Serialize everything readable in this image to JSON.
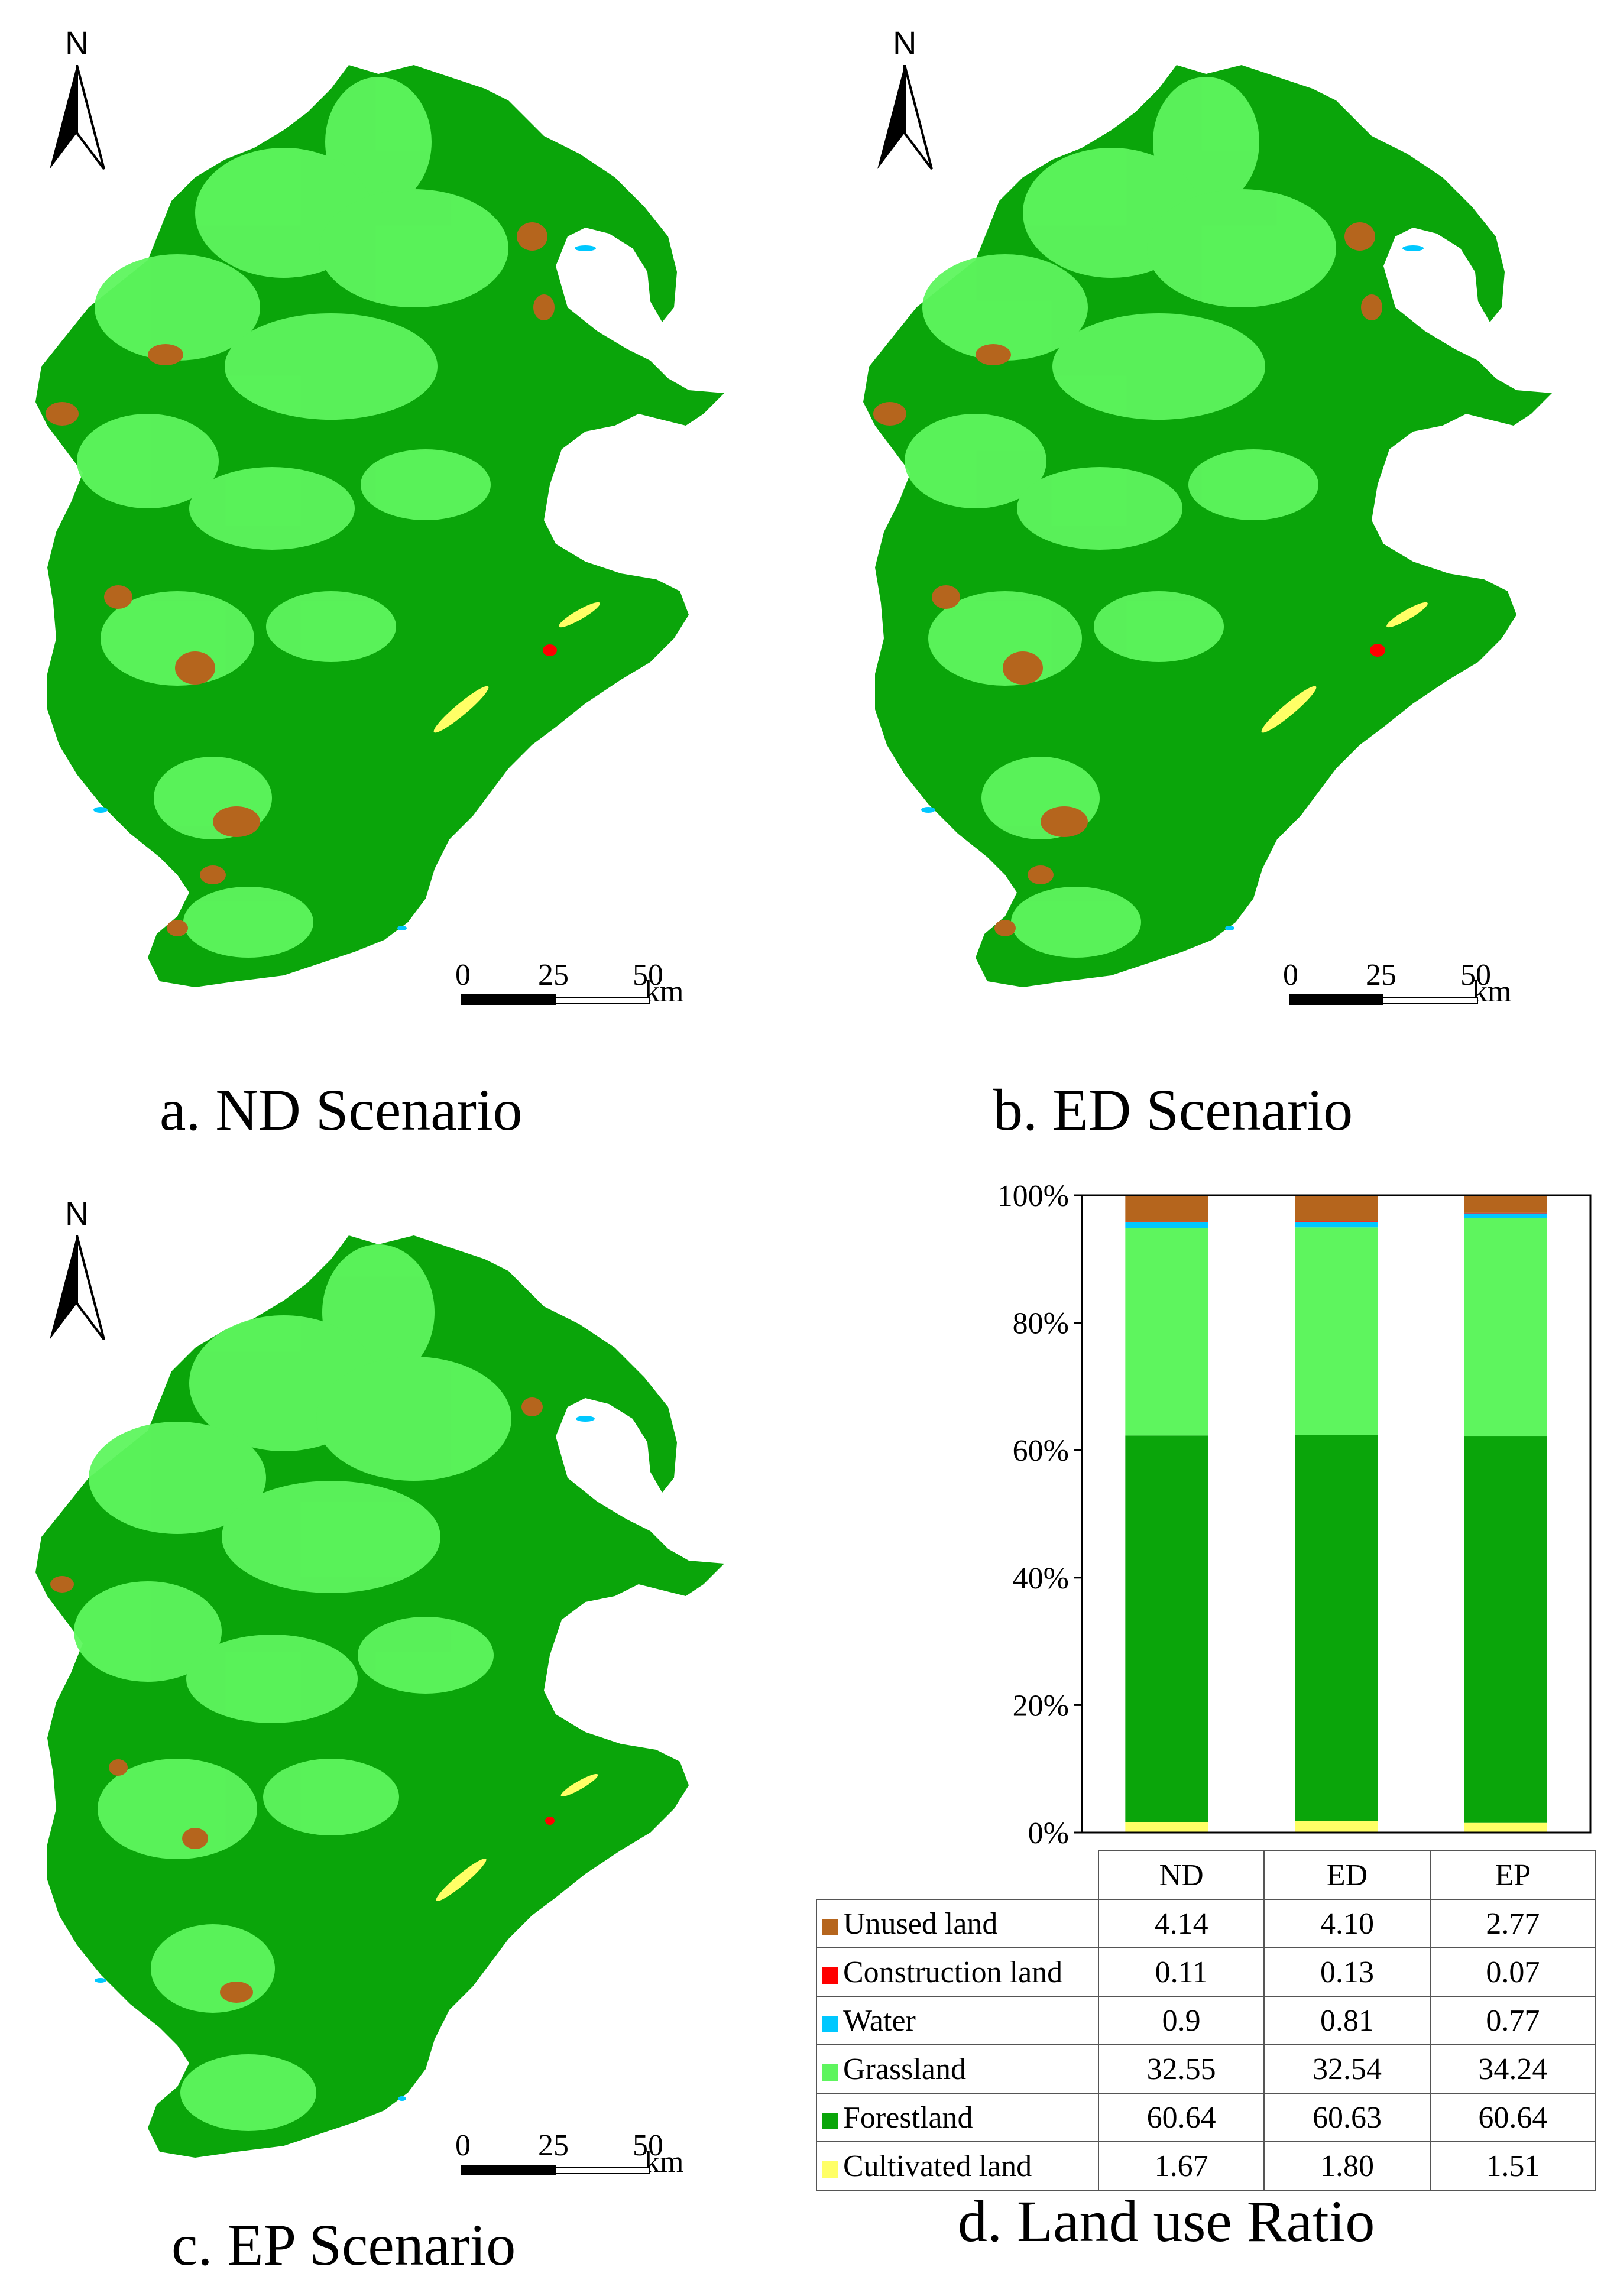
{
  "captions": {
    "a": "a. ND Scenario",
    "b": "b. ED Scenario",
    "c": "c. EP Scenario",
    "d": "d. Land use Ratio"
  },
  "north_label": "N",
  "scale": {
    "ticks": [
      "0",
      "25",
      "50"
    ],
    "unit": "km"
  },
  "colors": {
    "unused": "#b5651d",
    "construction": "#ff0000",
    "water": "#00c8ff",
    "grassland": "#5ef55e",
    "forestland": "#0aa50a",
    "cultivated": "#ffff66"
  },
  "chart_data": {
    "type": "bar",
    "stacked": true,
    "categories": [
      "ND",
      "ED",
      "EP"
    ],
    "yticks": [
      "0%",
      "20%",
      "40%",
      "60%",
      "80%",
      "100%"
    ],
    "ylim": [
      0,
      100
    ],
    "series": [
      {
        "name": "Cultivated land",
        "values": [
          1.67,
          1.8,
          1.51
        ]
      },
      {
        "name": "Forestland",
        "values": [
          60.64,
          60.63,
          60.64
        ]
      },
      {
        "name": "Grassland",
        "values": [
          32.55,
          32.54,
          34.24
        ]
      },
      {
        "name": "Water",
        "values": [
          0.9,
          0.81,
          0.77
        ]
      },
      {
        "name": "Construction land",
        "values": [
          0.11,
          0.13,
          0.07
        ]
      },
      {
        "name": "Unused land",
        "values": [
          4.14,
          4.1,
          2.77
        ]
      }
    ]
  },
  "table": {
    "headers": [
      "ND",
      "ED",
      "EP"
    ],
    "rows": [
      {
        "label": "Unused land",
        "values": [
          "4.14",
          "4.10",
          "2.77"
        ]
      },
      {
        "label": "Construction land",
        "values": [
          "0.11",
          "0.13",
          "0.07"
        ]
      },
      {
        "label": "Water",
        "values": [
          "0.9",
          "0.81",
          "0.77"
        ]
      },
      {
        "label": "Grassland",
        "values": [
          "32.55",
          "32.54",
          "34.24"
        ]
      },
      {
        "label": "Forestland",
        "values": [
          "60.64",
          "60.63",
          "60.64"
        ]
      },
      {
        "label": "Cultivated land",
        "values": [
          "1.67",
          "1.80",
          "1.51"
        ]
      }
    ]
  }
}
